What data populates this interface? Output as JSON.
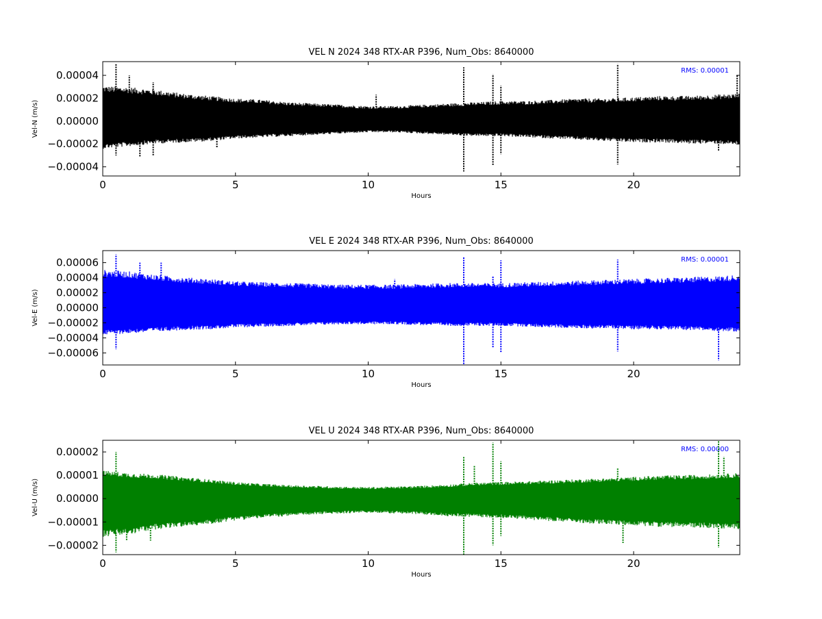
{
  "chart_data": [
    {
      "type": "scatter",
      "title": "VEL N 2024 348 RTX-AR  P396, Num_Obs: 8640000",
      "xlabel": "Hours",
      "ylabel": "Vel-N (m/s)",
      "xlim": [
        0,
        24
      ],
      "ylim": [
        -4.8e-05,
        5.2e-05
      ],
      "xticks": [
        0,
        5,
        10,
        15,
        20
      ],
      "yticks": [
        -4e-05,
        -2e-05,
        0.0,
        2e-05,
        4e-05
      ],
      "ytick_labels": [
        "−0.00004",
        "−0.00002",
        "0.00000",
        "0.00002",
        "0.00004"
      ],
      "grid": false,
      "annotation": "RMS:  0.00001",
      "color": "#000000",
      "envelope": {
        "hours": [
          0,
          1,
          2,
          3,
          4,
          5,
          6,
          7,
          8,
          9,
          10,
          11,
          12,
          13,
          14,
          15,
          16,
          17,
          18,
          19,
          20,
          21,
          22,
          23,
          24
        ],
        "upper": [
          2.8e-05,
          2.7e-05,
          2.5e-05,
          2.2e-05,
          2e-05,
          1.8e-05,
          1.7e-05,
          1.5e-05,
          1.4e-05,
          1.3e-05,
          1.2e-05,
          1.2e-05,
          1.3e-05,
          1.4e-05,
          1.5e-05,
          1.6e-05,
          1.6e-05,
          1.7e-05,
          1.8e-05,
          1.8e-05,
          1.9e-05,
          2e-05,
          2e-05,
          2.1e-05,
          2.2e-05
        ],
        "lower": [
          -2.2e-05,
          -2e-05,
          -1.8e-05,
          -1.7e-05,
          -1.6e-05,
          -1.4e-05,
          -1.3e-05,
          -1.2e-05,
          -1.1e-05,
          -1e-05,
          -9e-06,
          -9e-06,
          -1e-05,
          -1.1e-05,
          -1.2e-05,
          -1.2e-05,
          -1.3e-05,
          -1.4e-05,
          -1.5e-05,
          -1.6e-05,
          -1.7e-05,
          -1.7e-05,
          -1.8e-05,
          -1.8e-05,
          -1.9e-05
        ]
      },
      "spikes": [
        {
          "x": 0.5,
          "y": 5e-05
        },
        {
          "x": 0.5,
          "y": -3e-05
        },
        {
          "x": 1.0,
          "y": 4e-05
        },
        {
          "x": 1.4,
          "y": -3.1e-05
        },
        {
          "x": 1.9,
          "y": 3.4e-05
        },
        {
          "x": 1.9,
          "y": -3e-05
        },
        {
          "x": 4.3,
          "y": -2.3e-05
        },
        {
          "x": 10.3,
          "y": 2.3e-05
        },
        {
          "x": 13.6,
          "y": 4.7e-05
        },
        {
          "x": 13.6,
          "y": -4.4e-05
        },
        {
          "x": 14.7,
          "y": 4.1e-05
        },
        {
          "x": 14.7,
          "y": -3.9e-05
        },
        {
          "x": 15.0,
          "y": 3.1e-05
        },
        {
          "x": 15.0,
          "y": -2.9e-05
        },
        {
          "x": 19.4,
          "y": 5e-05
        },
        {
          "x": 19.4,
          "y": -3.8e-05
        },
        {
          "x": 23.2,
          "y": -2.6e-05
        },
        {
          "x": 23.9,
          "y": 4e-05
        }
      ]
    },
    {
      "type": "scatter",
      "title": "VEL E 2024 348 RTX-AR  P396, Num_Obs: 8640000",
      "xlabel": "Hours",
      "ylabel": "Vel-E (m/s)",
      "xlim": [
        0,
        24
      ],
      "ylim": [
        -7.6e-05,
        7.6e-05
      ],
      "xticks": [
        0,
        5,
        10,
        15,
        20
      ],
      "yticks": [
        -6e-05,
        -4e-05,
        -2e-05,
        0.0,
        2e-05,
        4e-05,
        6e-05
      ],
      "ytick_labels": [
        "−0.00006",
        "−0.00004",
        "−0.00002",
        "0.00000",
        "0.00002",
        "0.00004",
        "0.00006"
      ],
      "grid": false,
      "annotation": "RMS:  0.00001",
      "color": "#0000ff",
      "envelope": {
        "hours": [
          0,
          1,
          2,
          3,
          4,
          5,
          6,
          7,
          8,
          9,
          10,
          11,
          12,
          13,
          14,
          15,
          16,
          17,
          18,
          19,
          20,
          21,
          22,
          23,
          24
        ],
        "upper": [
          4.6e-05,
          4.4e-05,
          4e-05,
          3.7e-05,
          3.5e-05,
          3.2e-05,
          3.1e-05,
          3e-05,
          2.9e-05,
          2.8e-05,
          2.8e-05,
          2.8e-05,
          2.9e-05,
          3e-05,
          3e-05,
          3e-05,
          3.1e-05,
          3.2e-05,
          3.3e-05,
          3.4e-05,
          3.5e-05,
          3.6e-05,
          3.7e-05,
          3.8e-05,
          4e-05
        ],
        "lower": [
          -3.3e-05,
          -3.1e-05,
          -2.9e-05,
          -2.7e-05,
          -2.6e-05,
          -2.4e-05,
          -2.3e-05,
          -2.2e-05,
          -2.1e-05,
          -2e-05,
          -2e-05,
          -2e-05,
          -2.1e-05,
          -2.2e-05,
          -2.2e-05,
          -2.2e-05,
          -2.3e-05,
          -2.4e-05,
          -2.5e-05,
          -2.5e-05,
          -2.6e-05,
          -2.6e-05,
          -2.7e-05,
          -2.8e-05,
          -2.9e-05
        ]
      },
      "spikes": [
        {
          "x": 0.5,
          "y": 7.1e-05
        },
        {
          "x": 0.5,
          "y": -5.5e-05
        },
        {
          "x": 1.4,
          "y": 6e-05
        },
        {
          "x": 2.2,
          "y": 6e-05
        },
        {
          "x": 11.0,
          "y": 3.8e-05
        },
        {
          "x": 13.6,
          "y": 6.7e-05
        },
        {
          "x": 13.6,
          "y": -7.6e-05
        },
        {
          "x": 14.7,
          "y": 4.2e-05
        },
        {
          "x": 14.7,
          "y": -5.3e-05
        },
        {
          "x": 15.0,
          "y": 6.3e-05
        },
        {
          "x": 15.0,
          "y": -6e-05
        },
        {
          "x": 19.4,
          "y": 6.4e-05
        },
        {
          "x": 19.4,
          "y": -5.8e-05
        },
        {
          "x": 23.2,
          "y": -7e-05
        },
        {
          "x": 23.4,
          "y": -2e-05
        }
      ]
    },
    {
      "type": "scatter",
      "title": "VEL U 2024 348 RTX-AR  P396, Num_Obs: 8640000",
      "xlabel": "Hours",
      "ylabel": "Vel-U (m/s)",
      "xlim": [
        0,
        24
      ],
      "ylim": [
        -2.4e-05,
        2.5e-05
      ],
      "xticks": [
        0,
        5,
        10,
        15,
        20
      ],
      "yticks": [
        -2e-05,
        -1e-05,
        0.0,
        1e-05,
        2e-05
      ],
      "ytick_labels": [
        "−0.00002",
        "−0.00001",
        "0.00000",
        "0.00001",
        "0.00002"
      ],
      "grid": false,
      "annotation": "RMS:  0.00000",
      "color": "#008000",
      "envelope": {
        "hours": [
          0,
          1,
          2,
          3,
          4,
          5,
          6,
          7,
          8,
          9,
          10,
          11,
          12,
          13,
          14,
          15,
          16,
          17,
          18,
          19,
          20,
          21,
          22,
          23,
          24
        ],
        "upper": [
          1.1e-05,
          1e-05,
          9.5e-06,
          8.5e-06,
          7.5e-06,
          6.5e-06,
          5.8e-06,
          5.3e-06,
          5e-06,
          4.7e-06,
          4.5e-06,
          4.7e-06,
          5e-06,
          5.5e-06,
          6.2e-06,
          6.5e-06,
          6.8e-06,
          7.2e-06,
          7.6e-06,
          8e-06,
          8.5e-06,
          9e-06,
          9.2e-06,
          9.5e-06,
          1e-05
        ],
        "lower": [
          -1.5e-05,
          -1.4e-05,
          -1.2e-05,
          -1.1e-05,
          -1e-05,
          -8.5e-06,
          -7.5e-06,
          -6.8e-06,
          -6.2e-06,
          -5.8e-06,
          -5.5e-06,
          -5.8e-06,
          -6.2e-06,
          -6.8e-06,
          -7.2e-06,
          -7.5e-06,
          -8.2e-06,
          -8.8e-06,
          -9.5e-06,
          -1e-05,
          -1.05e-05,
          -1.1e-05,
          -1.12e-05,
          -1.15e-05,
          -1.2e-05
        ]
      },
      "spikes": [
        {
          "x": 0.5,
          "y": 2e-05
        },
        {
          "x": 0.5,
          "y": -2.3e-05
        },
        {
          "x": 0.9,
          "y": -1.8e-05
        },
        {
          "x": 1.8,
          "y": -1.8e-05
        },
        {
          "x": 13.6,
          "y": 1.8e-05
        },
        {
          "x": 13.6,
          "y": -2.4e-05
        },
        {
          "x": 14.0,
          "y": 1.4e-05
        },
        {
          "x": 14.7,
          "y": 2.4e-05
        },
        {
          "x": 14.7,
          "y": -2e-05
        },
        {
          "x": 15.0,
          "y": 1.6e-05
        },
        {
          "x": 15.0,
          "y": -1.6e-05
        },
        {
          "x": 19.4,
          "y": 1.3e-05
        },
        {
          "x": 19.6,
          "y": -1.9e-05
        },
        {
          "x": 23.2,
          "y": 2.5e-05
        },
        {
          "x": 23.2,
          "y": -2.1e-05
        },
        {
          "x": 23.4,
          "y": 1.8e-05
        }
      ]
    }
  ]
}
